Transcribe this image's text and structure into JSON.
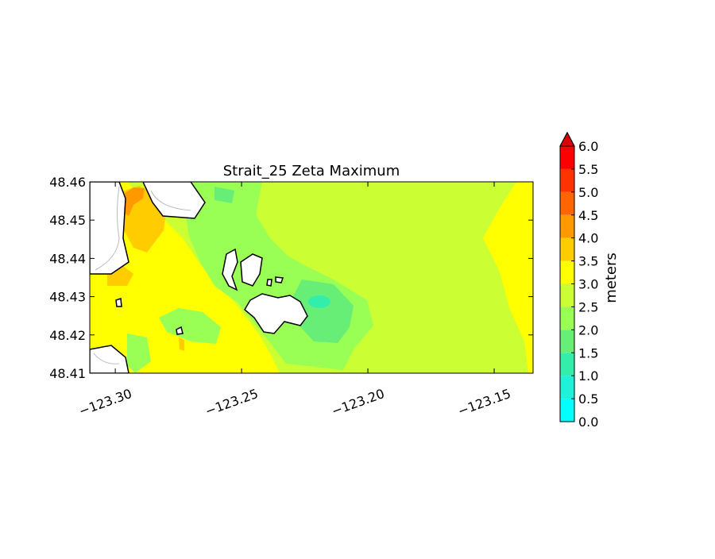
{
  "chart_data": {
    "type": "contour",
    "title": "Strait_25 Zeta Maximum",
    "colorbar_label": "meters",
    "xlim": [
      -123.3101,
      -123.1346
    ],
    "ylim": [
      48.41,
      48.46
    ],
    "xticks": [
      {
        "value": -123.3,
        "label": "−123.30"
      },
      {
        "value": -123.25,
        "label": "−123.25"
      },
      {
        "value": -123.2,
        "label": "−123.20"
      },
      {
        "value": -123.15,
        "label": "−123.15"
      }
    ],
    "yticks": [
      48.41,
      48.42,
      48.43,
      48.44,
      48.45,
      48.46
    ],
    "levels": [
      {
        "value": 0,
        "label": "0.0"
      },
      0.5,
      {
        "value": 1,
        "label": "1.0"
      },
      1.5,
      {
        "value": 2,
        "label": "2.0"
      },
      2.5,
      {
        "value": 3,
        "label": "3.0"
      },
      3.5,
      {
        "value": 4,
        "label": "4.0"
      },
      4.5,
      {
        "value": 5,
        "label": "5.0"
      },
      5.5,
      {
        "value": 6,
        "label": "6.0"
      }
    ],
    "colors": [
      "#00ffff",
      "#1ff2d9",
      "#33eeaa",
      "#66ee77",
      "#99ff55",
      "#ccff33",
      "#ffff00",
      "#ffcc00",
      "#ff9900",
      "#ff6600",
      "#ff3300",
      "#ff0000"
    ],
    "extend": "max",
    "extend_color": "#dd0000"
  }
}
